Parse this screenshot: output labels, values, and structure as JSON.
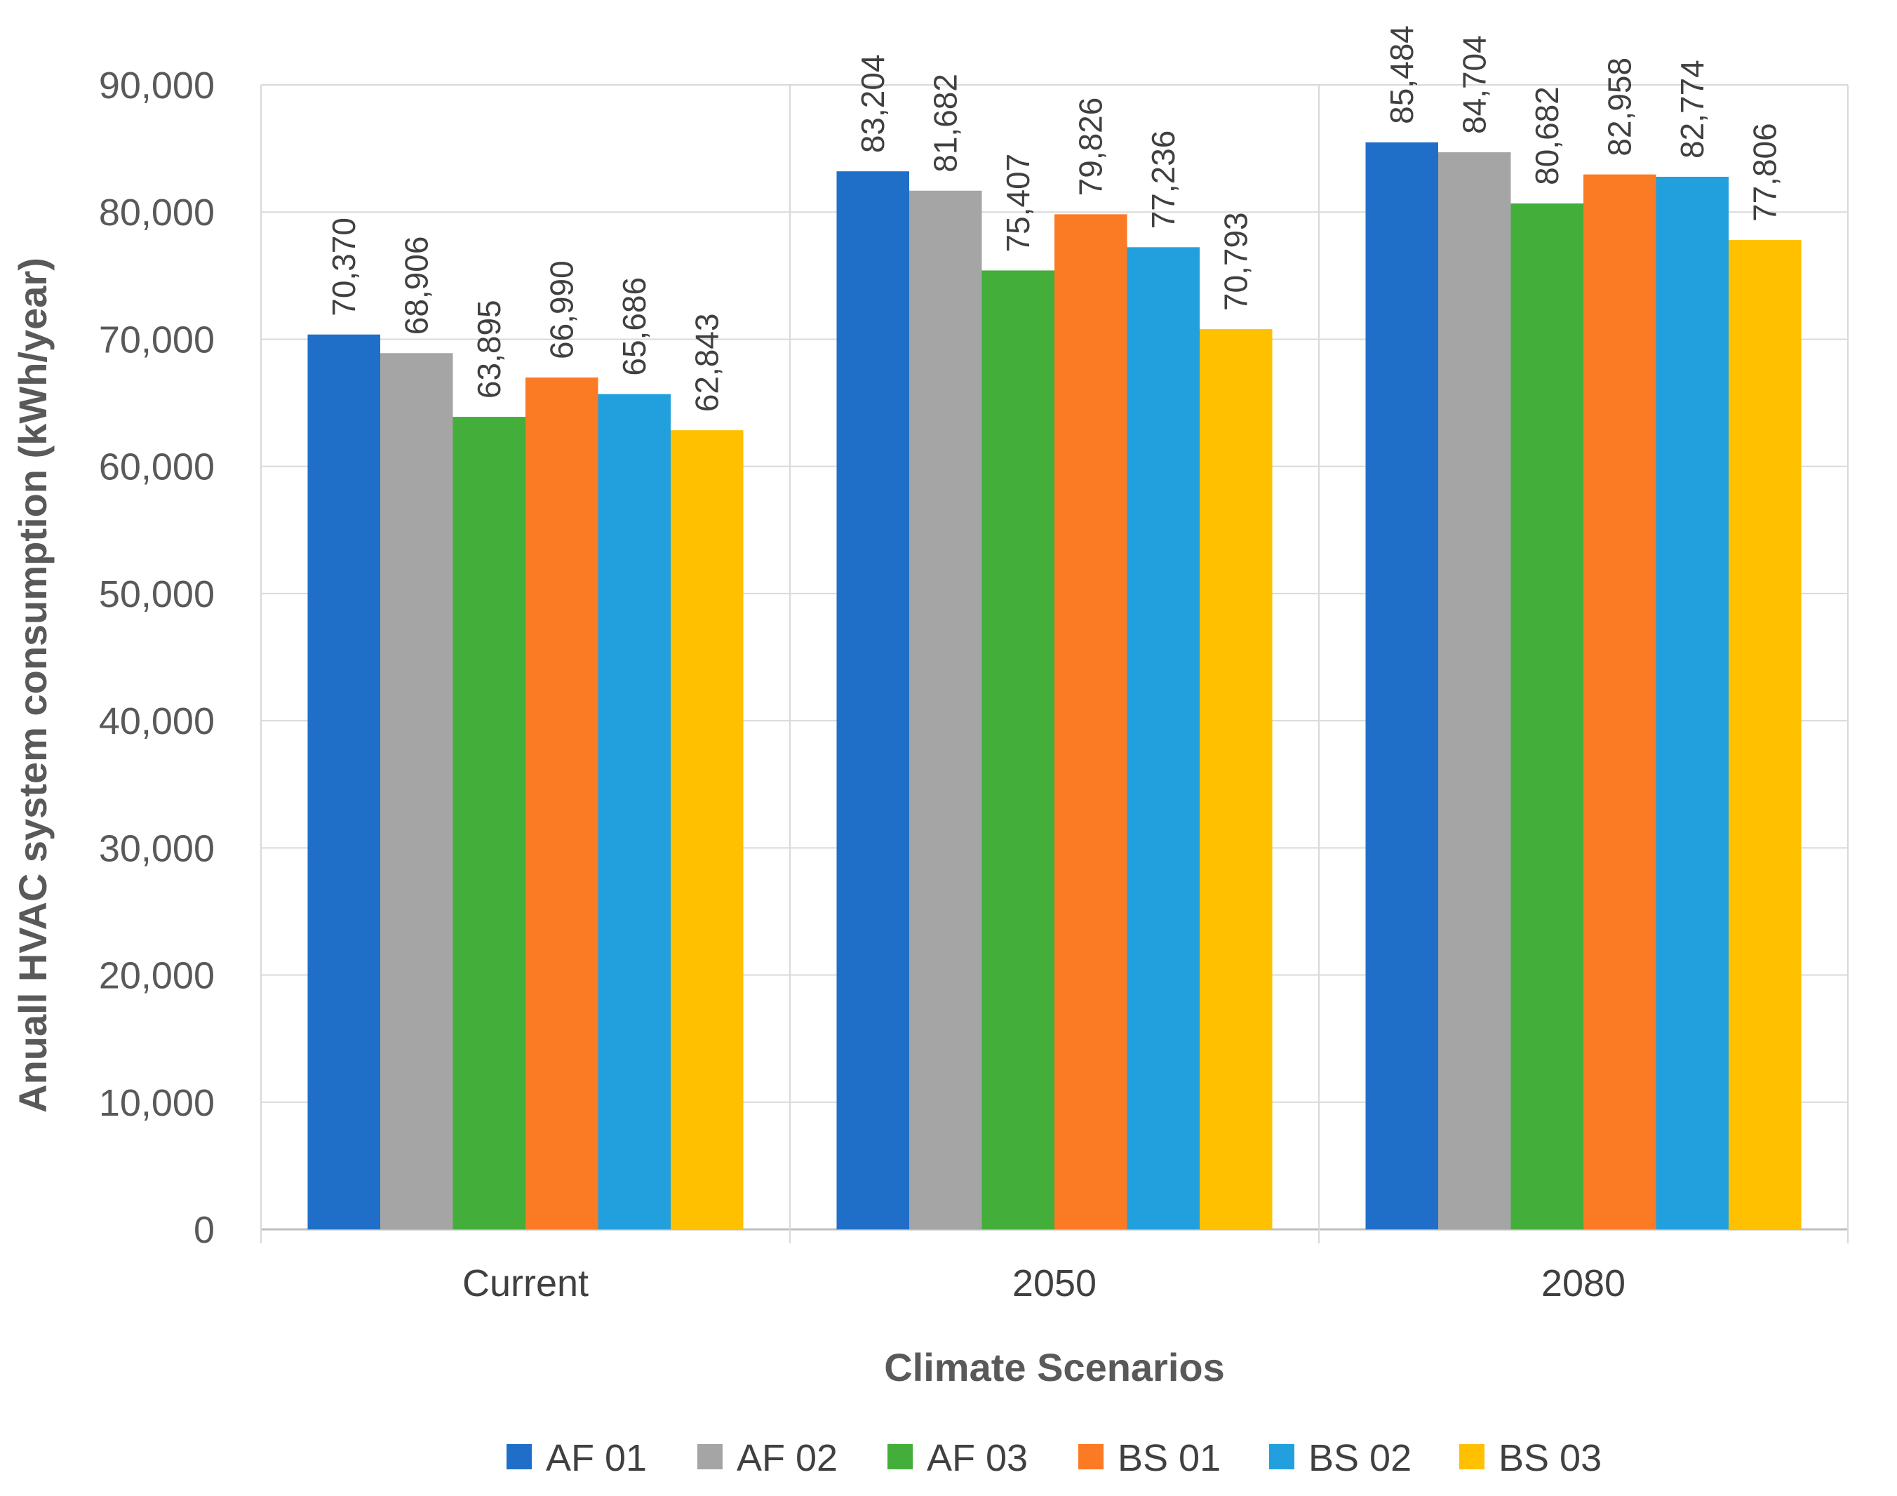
{
  "chart_data": {
    "type": "bar",
    "title": "",
    "xlabel": "Climate Scenarios",
    "ylabel": "Anuall HVAC system consumption (kWh/year)",
    "ylim": [
      0,
      90000
    ],
    "yticks": [
      0,
      10000,
      20000,
      30000,
      40000,
      50000,
      60000,
      70000,
      80000,
      90000
    ],
    "ytick_labels": [
      "0",
      "10,000",
      "20,000",
      "30,000",
      "40,000",
      "50,000",
      "60,000",
      "70,000",
      "80,000",
      "90,000"
    ],
    "grid": true,
    "legend_position": "bottom",
    "categories": [
      "Current",
      "2050",
      "2080"
    ],
    "series": [
      {
        "name": "AF 01",
        "color": "#1F6FC8",
        "values": [
          70370,
          83204,
          85484
        ],
        "labels": [
          "70,370",
          "83,204",
          "85,484"
        ]
      },
      {
        "name": "AF 02",
        "color": "#A5A5A5",
        "values": [
          68906,
          81682,
          84704
        ],
        "labels": [
          "68,906",
          "81,682",
          "84,704"
        ]
      },
      {
        "name": "AF 03",
        "color": "#43AE3A",
        "values": [
          63895,
          75407,
          80682
        ],
        "labels": [
          "63,895",
          "75,407",
          "80,682"
        ]
      },
      {
        "name": "BS 01",
        "color": "#FB7A24",
        "values": [
          66990,
          79826,
          82958
        ],
        "labels": [
          "66,990",
          "79,826",
          "82,958"
        ]
      },
      {
        "name": "BS 02",
        "color": "#21A0DD",
        "values": [
          65686,
          77236,
          82774
        ],
        "labels": [
          "65,686",
          "77,236",
          "82,774"
        ]
      },
      {
        "name": "BS 03",
        "color": "#FFC000",
        "values": [
          62843,
          70793,
          77806
        ],
        "labels": [
          "62,843",
          "70,793",
          "77,806"
        ]
      }
    ]
  }
}
